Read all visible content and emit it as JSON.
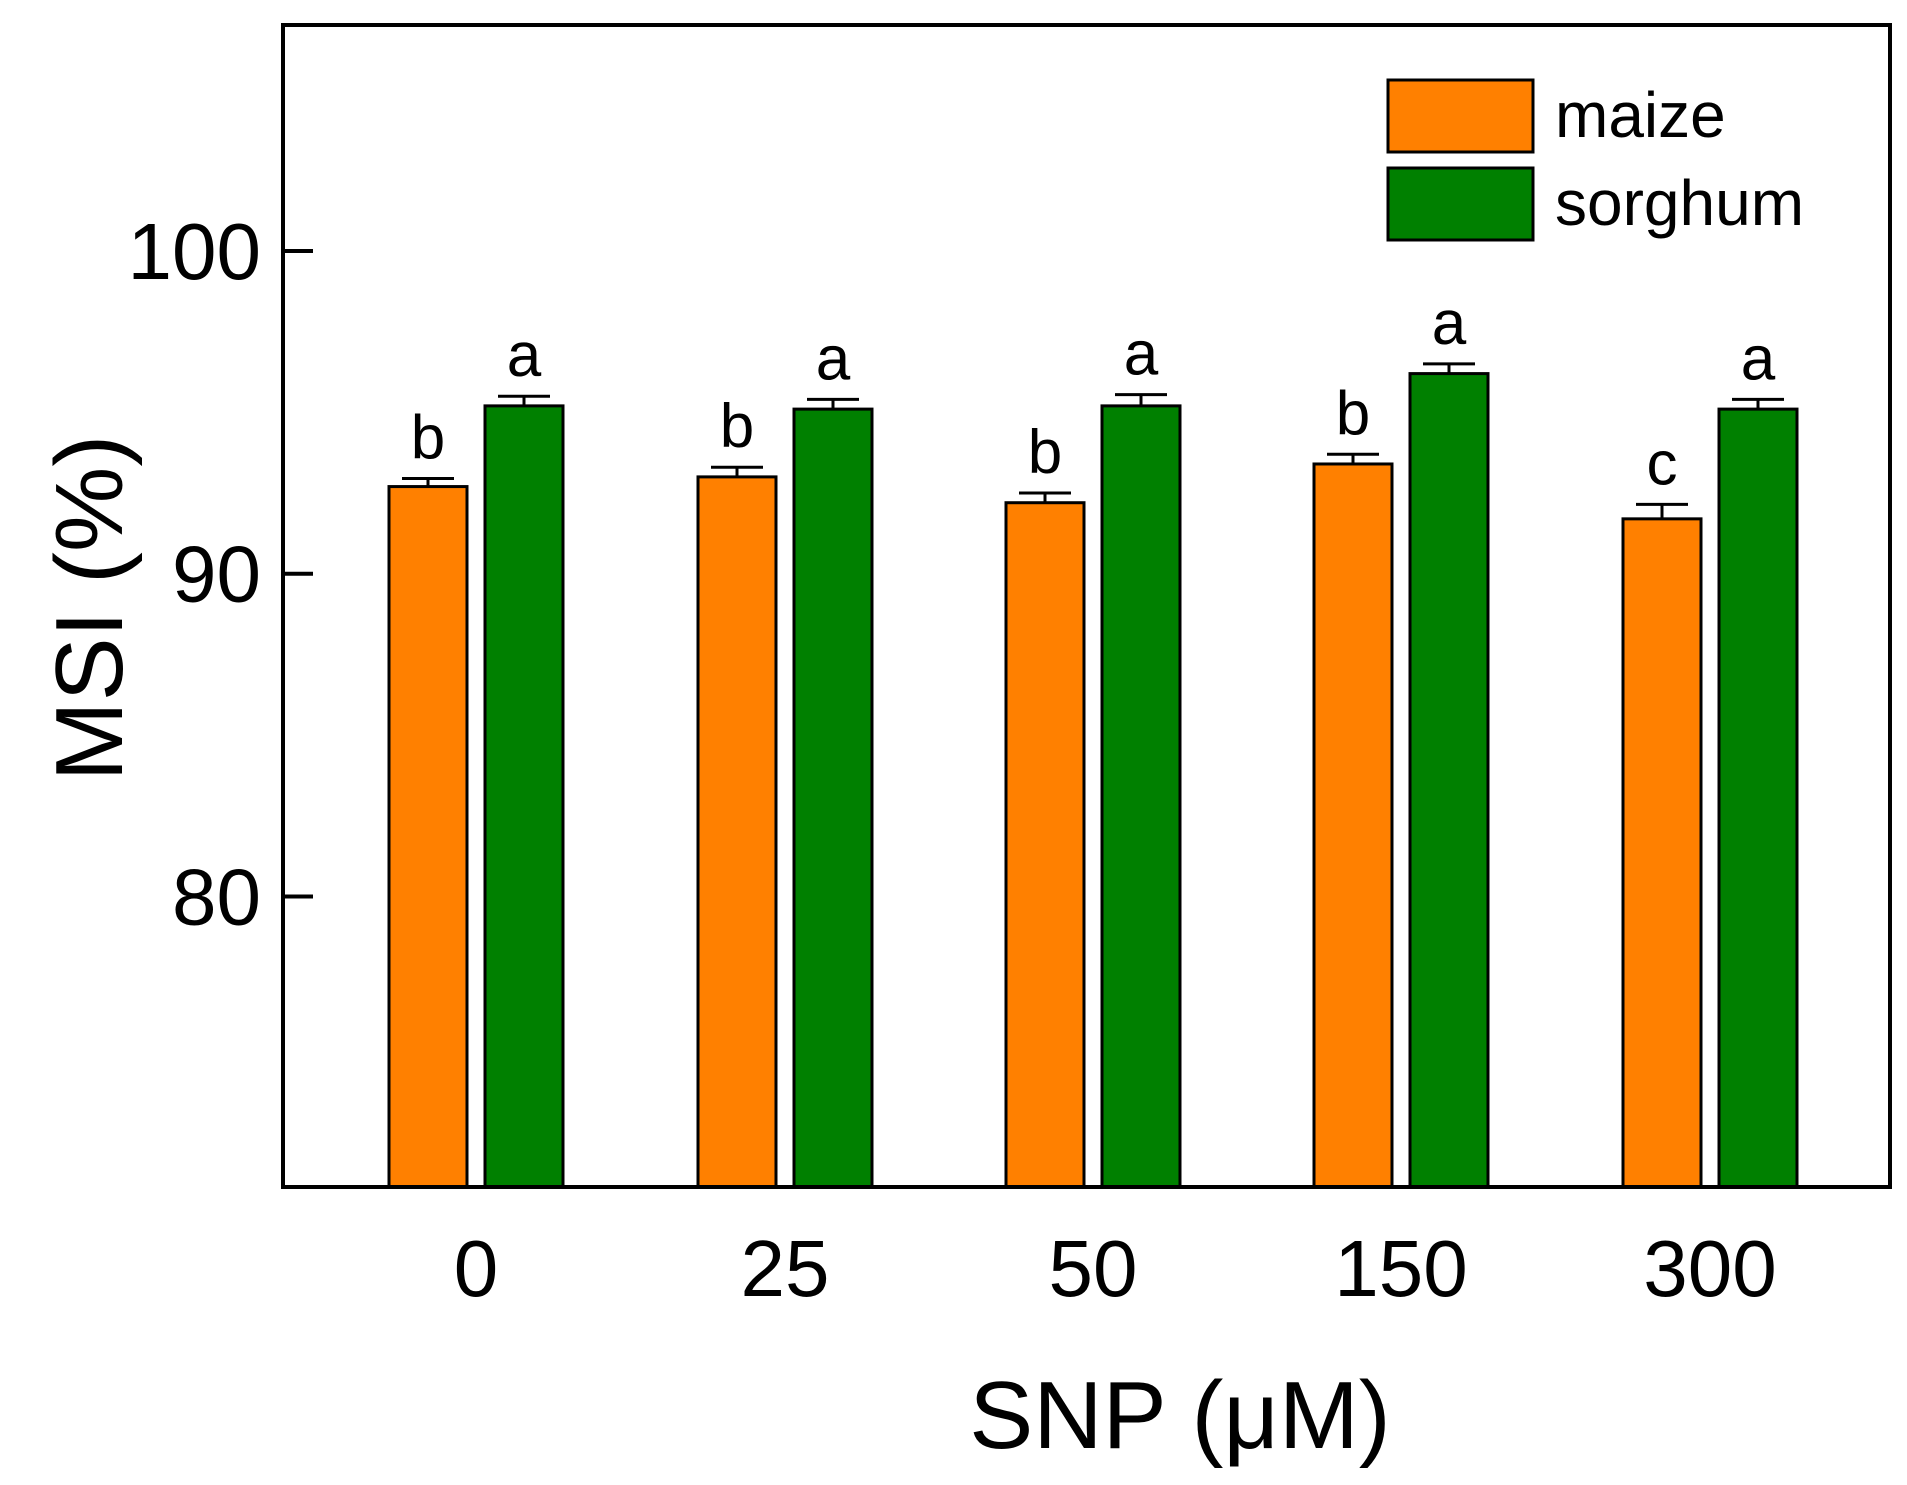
{
  "chart_data": {
    "type": "bar",
    "title": "",
    "xlabel": "SNP  (μM)",
    "ylabel": "MSI (%)",
    "categories": [
      "0",
      "25",
      "50",
      "150",
      "300"
    ],
    "ylim": [
      71,
      107
    ],
    "yticks": [
      80,
      90,
      100
    ],
    "ytick_labels": [
      "80",
      "90",
      "100"
    ],
    "grid": false,
    "legend_position": "top-right",
    "series": [
      {
        "name": "maize",
        "color": "#FF8000",
        "values": [
          92.7,
          93.0,
          92.2,
          93.4,
          91.7
        ],
        "errors": [
          0.25,
          0.3,
          0.3,
          0.3,
          0.45
        ],
        "sig_labels": [
          "b",
          "b",
          "b",
          "b",
          "c"
        ]
      },
      {
        "name": "sorghum",
        "color": "#008000",
        "values": [
          95.2,
          95.1,
          95.2,
          96.2,
          95.1
        ],
        "errors": [
          0.3,
          0.3,
          0.35,
          0.3,
          0.3
        ],
        "sig_labels": [
          "a",
          "a",
          "a",
          "a",
          "a"
        ]
      }
    ]
  }
}
